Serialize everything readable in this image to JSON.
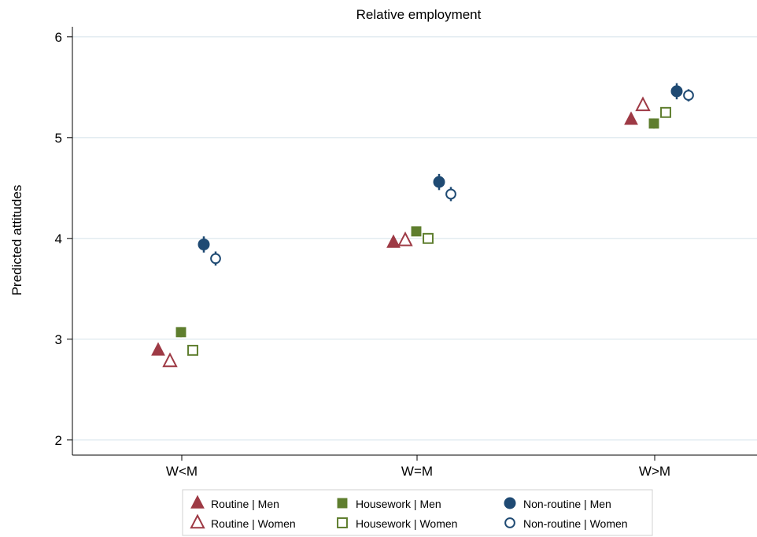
{
  "chart_data": {
    "type": "scatter",
    "title": "Relative employment",
    "xlabel": "",
    "ylabel": "Predicted attitudes",
    "ylim": [
      1.85,
      6.1
    ],
    "yticks": [
      2,
      3,
      4,
      5,
      6
    ],
    "categories": [
      "W<M",
      "W=M",
      "W>M"
    ],
    "grid": true,
    "legend_position": "bottom",
    "colors": {
      "routine": "#9e3a45",
      "housework": "#5f7e2e",
      "nonroutine": "#1f4a73"
    },
    "series": [
      {
        "name": "Routine | Men",
        "group": "routine",
        "marker": "triangle",
        "filled": true,
        "values": [
          2.89,
          3.96,
          5.18
        ],
        "ci": [
          0.04,
          0.04,
          0.05
        ]
      },
      {
        "name": "Routine | Women",
        "group": "routine",
        "marker": "triangle",
        "filled": false,
        "values": [
          2.78,
          3.98,
          5.32
        ],
        "ci": [
          0.04,
          0.04,
          0.05
        ]
      },
      {
        "name": "Housework | Men",
        "group": "housework",
        "marker": "square",
        "filled": true,
        "values": [
          3.07,
          4.07,
          5.14
        ],
        "ci": [
          0.05,
          0.04,
          0.05
        ]
      },
      {
        "name": "Housework | Women",
        "group": "housework",
        "marker": "square",
        "filled": false,
        "values": [
          2.89,
          4.0,
          5.25
        ],
        "ci": [
          0.04,
          0.04,
          0.05
        ]
      },
      {
        "name": "Non-routine | Men",
        "group": "nonroutine",
        "marker": "circle",
        "filled": true,
        "values": [
          3.94,
          4.56,
          5.46
        ],
        "ci": [
          0.08,
          0.08,
          0.08
        ]
      },
      {
        "name": "Non-routine | Women",
        "group": "nonroutine",
        "marker": "circle",
        "filled": false,
        "values": [
          3.8,
          4.44,
          5.42
        ],
        "ci": [
          0.07,
          0.07,
          0.06
        ]
      }
    ]
  }
}
